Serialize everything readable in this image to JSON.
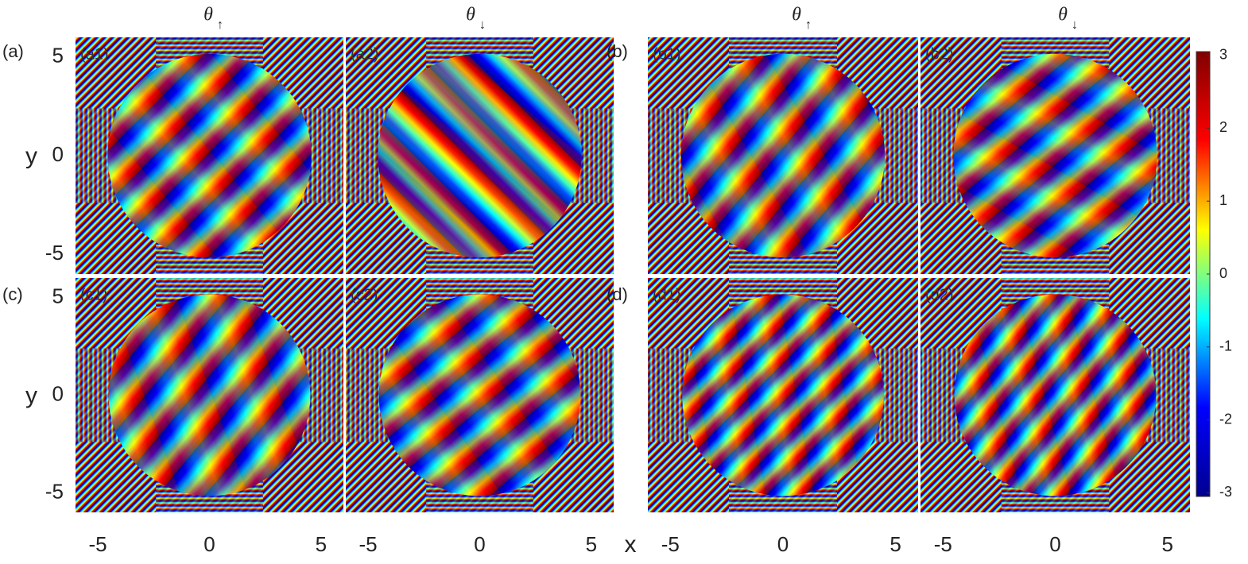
{
  "chart_data": {
    "type": "phase-map",
    "xlabel": "x",
    "ylabel": "y",
    "xlim": [
      -6,
      6
    ],
    "ylim": [
      -6,
      6
    ],
    "xticks": [
      -5,
      0,
      5
    ],
    "yticks": [
      -5,
      0,
      5
    ],
    "column_headers": [
      {
        "symbol": "θ",
        "sub": "↑"
      },
      {
        "symbol": "θ",
        "sub": "↓"
      },
      {
        "symbol": "θ",
        "sub": "↑"
      },
      {
        "symbol": "θ",
        "sub": "↓"
      }
    ],
    "groups": [
      "(a)",
      "(b)",
      "(c)",
      "(d)"
    ],
    "panels": [
      "(a1)",
      "(a2)",
      "(b1)",
      "(b2)",
      "(c1)",
      "(c2)",
      "(d1)",
      "(d2)"
    ],
    "colorbar": {
      "clim": [
        -3.05,
        3.05
      ],
      "ticks": [
        -3,
        -2,
        -1,
        0,
        1,
        2,
        3
      ],
      "colors": [
        "#00008f",
        "#0000ff",
        "#00ffff",
        "#ffff00",
        "#ff0000",
        "#800000"
      ]
    }
  }
}
